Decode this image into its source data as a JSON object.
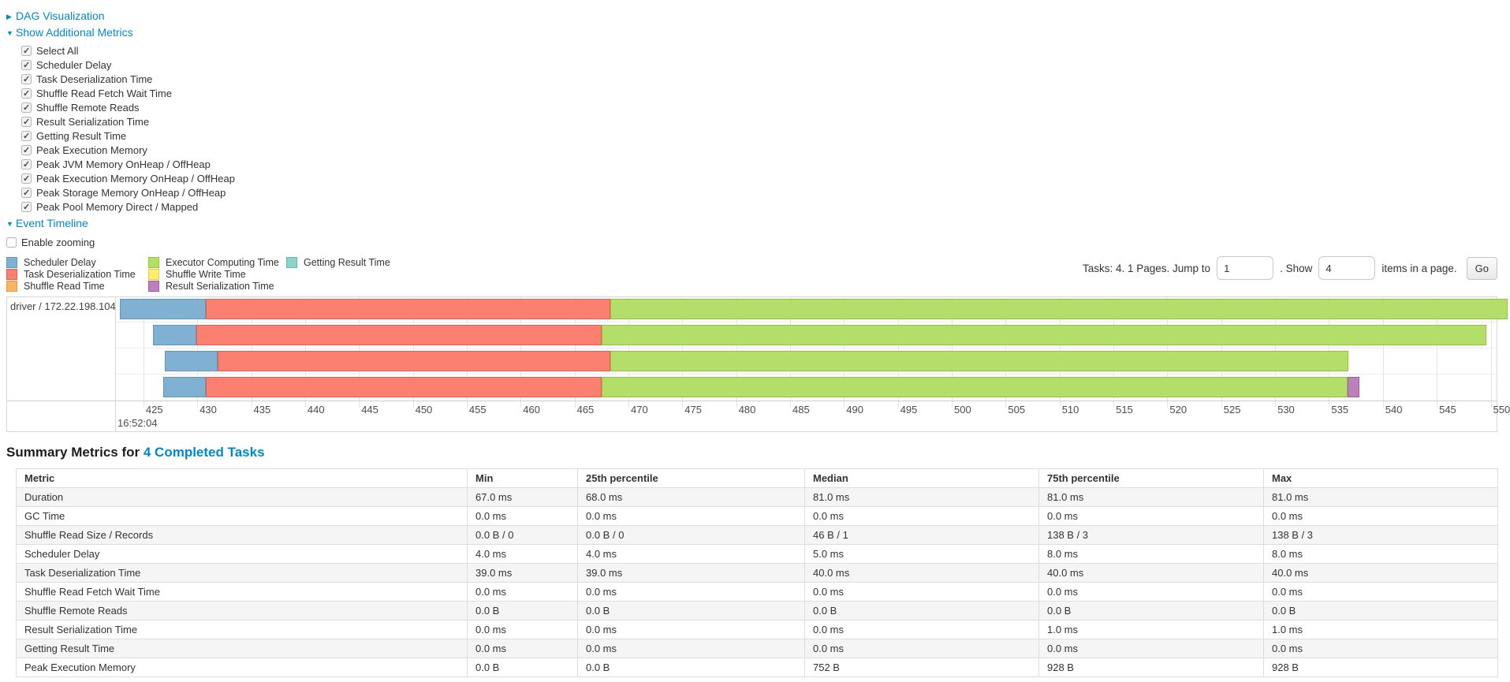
{
  "sections": {
    "dag": {
      "label": "DAG Visualization",
      "expanded": false
    },
    "metrics": {
      "label": "Show Additional Metrics",
      "expanded": true
    },
    "timeline": {
      "label": "Event Timeline",
      "expanded": true
    }
  },
  "metric_options": [
    {
      "label": "Select All",
      "checked": true
    },
    {
      "label": "Scheduler Delay",
      "checked": true
    },
    {
      "label": "Task Deserialization Time",
      "checked": true
    },
    {
      "label": "Shuffle Read Fetch Wait Time",
      "checked": true
    },
    {
      "label": "Shuffle Remote Reads",
      "checked": true
    },
    {
      "label": "Result Serialization Time",
      "checked": true
    },
    {
      "label": "Getting Result Time",
      "checked": true
    },
    {
      "label": "Peak Execution Memory",
      "checked": true
    },
    {
      "label": "Peak JVM Memory OnHeap / OffHeap",
      "checked": true
    },
    {
      "label": "Peak Execution Memory OnHeap / OffHeap",
      "checked": true
    },
    {
      "label": "Peak Storage Memory OnHeap / OffHeap",
      "checked": true
    },
    {
      "label": "Peak Pool Memory Direct / Mapped",
      "checked": true
    }
  ],
  "enable_zooming": {
    "label": "Enable zooming",
    "checked": false
  },
  "colors": {
    "scheduler_delay": {
      "fill": "#80B1D3",
      "border": "#5E97BF"
    },
    "task_deserialization": {
      "fill": "#FB8072",
      "border": "#E55F52"
    },
    "shuffle_read": {
      "fill": "#FDB462",
      "border": "#E89A43"
    },
    "executor_computing": {
      "fill": "#B3DE69",
      "border": "#94C535"
    },
    "shuffle_write": {
      "fill": "#FFED6F",
      "border": "#E2CE4B"
    },
    "result_serialization": {
      "fill": "#BC80BD",
      "border": "#A25EA4"
    },
    "getting_result": {
      "fill": "#8DD3C7",
      "border": "#64BAA9"
    }
  },
  "legend_columns": [
    [
      {
        "key": "scheduler_delay",
        "label": "Scheduler Delay"
      },
      {
        "key": "task_deserialization",
        "label": "Task Deserialization Time"
      },
      {
        "key": "shuffle_read",
        "label": "Shuffle Read Time"
      }
    ],
    [
      {
        "key": "executor_computing",
        "label": "Executor Computing Time"
      },
      {
        "key": "shuffle_write",
        "label": "Shuffle Write Time"
      },
      {
        "key": "result_serialization",
        "label": "Result Serialization Time"
      }
    ],
    [
      {
        "key": "getting_result",
        "label": "Getting Result Time"
      }
    ]
  ],
  "pagination": {
    "prefix": "Tasks: 4. 1 Pages. Jump to",
    "jump_value": "1",
    "show_text": ". Show",
    "show_value": "4",
    "suffix": "items in a page.",
    "go_label": "Go"
  },
  "chart_data": {
    "type": "timeline-gantt",
    "executor_label": "driver / 172.22.198.104",
    "axis": {
      "unit": "milliseconds within second",
      "major_label": "16:52:04",
      "domain": [
        422.45,
        550.55
      ],
      "tick_start": 425,
      "tick_end": 550,
      "tick_step": 5
    },
    "tasks": [
      {
        "segments": [
          {
            "key": "scheduler_delay",
            "start": 422.8,
            "end": 430.8
          },
          {
            "key": "task_deserialization",
            "start": 430.8,
            "end": 468.3
          },
          {
            "key": "executor_computing",
            "start": 468.3,
            "end": 551.6
          }
        ]
      },
      {
        "segments": [
          {
            "key": "scheduler_delay",
            "start": 425.9,
            "end": 429.9
          },
          {
            "key": "task_deserialization",
            "start": 429.9,
            "end": 467.5
          },
          {
            "key": "executor_computing",
            "start": 467.5,
            "end": 549.6
          }
        ]
      },
      {
        "segments": [
          {
            "key": "scheduler_delay",
            "start": 427.0,
            "end": 431.9
          },
          {
            "key": "task_deserialization",
            "start": 431.9,
            "end": 468.3
          },
          {
            "key": "executor_computing",
            "start": 468.3,
            "end": 536.8
          }
        ]
      },
      {
        "segments": [
          {
            "key": "scheduler_delay",
            "start": 426.8,
            "end": 430.8
          },
          {
            "key": "task_deserialization",
            "start": 430.8,
            "end": 467.5
          },
          {
            "key": "executor_computing",
            "start": 467.5,
            "end": 536.7
          },
          {
            "key": "result_serialization",
            "start": 536.7,
            "end": 537.8
          }
        ]
      }
    ]
  },
  "summary": {
    "title_prefix": "Summary Metrics for",
    "title_link": "4 Completed Tasks",
    "columns": [
      "Metric",
      "Min",
      "25th percentile",
      "Median",
      "75th percentile",
      "Max"
    ],
    "rows": [
      {
        "metric": "Duration",
        "values": [
          "67.0 ms",
          "68.0 ms",
          "81.0 ms",
          "81.0 ms",
          "81.0 ms"
        ]
      },
      {
        "metric": "GC Time",
        "values": [
          "0.0 ms",
          "0.0 ms",
          "0.0 ms",
          "0.0 ms",
          "0.0 ms"
        ]
      },
      {
        "metric": "Shuffle Read Size / Records",
        "values": [
          "0.0 B / 0",
          "0.0 B / 0",
          "46 B / 1",
          "138 B / 3",
          "138 B / 3"
        ]
      },
      {
        "metric": "Scheduler Delay",
        "values": [
          "4.0 ms",
          "4.0 ms",
          "5.0 ms",
          "8.0 ms",
          "8.0 ms"
        ]
      },
      {
        "metric": "Task Deserialization Time",
        "values": [
          "39.0 ms",
          "39.0 ms",
          "40.0 ms",
          "40.0 ms",
          "40.0 ms"
        ]
      },
      {
        "metric": "Shuffle Read Fetch Wait Time",
        "values": [
          "0.0 ms",
          "0.0 ms",
          "0.0 ms",
          "0.0 ms",
          "0.0 ms"
        ]
      },
      {
        "metric": "Shuffle Remote Reads",
        "values": [
          "0.0 B",
          "0.0 B",
          "0.0 B",
          "0.0 B",
          "0.0 B"
        ]
      },
      {
        "metric": "Result Serialization Time",
        "values": [
          "0.0 ms",
          "0.0 ms",
          "0.0 ms",
          "1.0 ms",
          "1.0 ms"
        ]
      },
      {
        "metric": "Getting Result Time",
        "values": [
          "0.0 ms",
          "0.0 ms",
          "0.0 ms",
          "0.0 ms",
          "0.0 ms"
        ]
      },
      {
        "metric": "Peak Execution Memory",
        "values": [
          "0.0 B",
          "0.0 B",
          "752 B",
          "928 B",
          "928 B"
        ]
      }
    ]
  }
}
